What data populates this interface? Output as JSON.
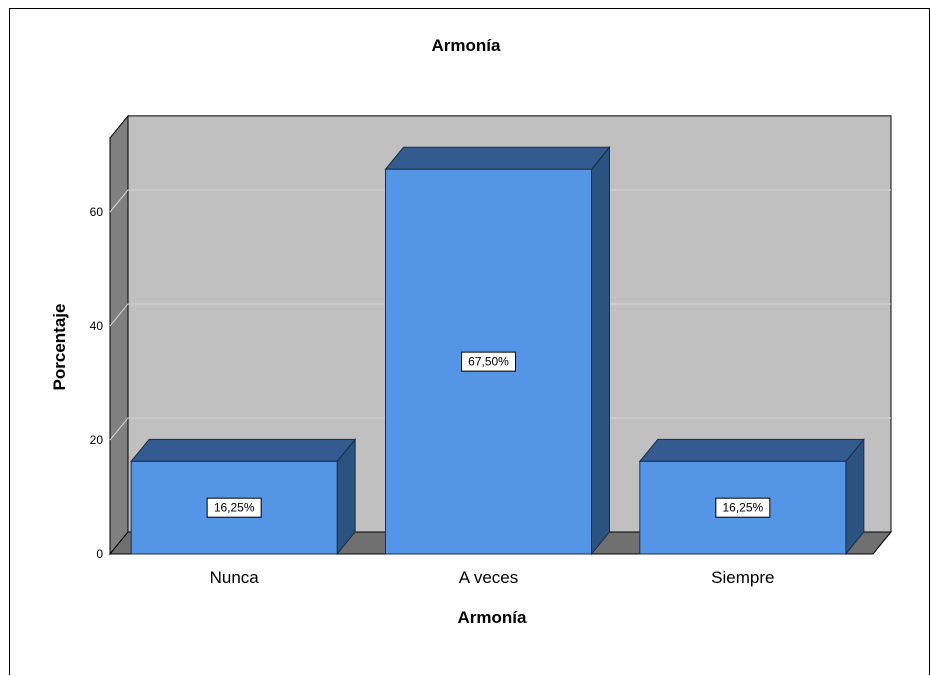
{
  "chart_data": {
    "type": "bar",
    "title": "Armonía",
    "xlabel": "Armonía",
    "ylabel": "Porcentaje",
    "categories": [
      "Nunca",
      "A veces",
      "Siempre"
    ],
    "values": [
      16.25,
      67.5,
      16.25
    ],
    "data_labels": [
      "16,25%",
      "67,50%",
      "16,25%"
    ],
    "ylim": [
      0,
      73
    ],
    "yticks": [
      0,
      20,
      40,
      60
    ],
    "grid": true,
    "legend": "none",
    "style": "3d",
    "colors": {
      "bar_front": "#5595e5",
      "bar_top": "#335b90",
      "bar_side": "#2c527f",
      "plot_back": "#c0c0c0",
      "plot_left_wall": "#808080",
      "plot_floor": "#707070",
      "gridline": "#d4d4d4"
    }
  }
}
